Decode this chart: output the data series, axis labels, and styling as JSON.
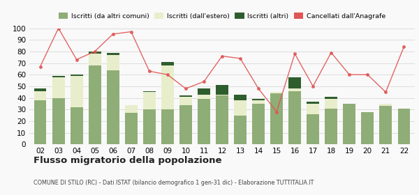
{
  "years": [
    "02",
    "03",
    "04",
    "05",
    "06",
    "07",
    "08",
    "09",
    "10",
    "11",
    "12",
    "13",
    "14",
    "15",
    "16",
    "17",
    "18",
    "19",
    "20",
    "21",
    "22"
  ],
  "iscritti_comuni": [
    38,
    40,
    32,
    68,
    64,
    27,
    30,
    30,
    34,
    39,
    42,
    25,
    35,
    44,
    46,
    26,
    31,
    35,
    28,
    33,
    31
  ],
  "iscritti_estero": [
    8,
    18,
    27,
    10,
    13,
    7,
    15,
    38,
    7,
    4,
    1,
    13,
    3,
    1,
    2,
    9,
    8,
    0,
    0,
    2,
    0
  ],
  "iscritti_altri": [
    2,
    1,
    1,
    2,
    2,
    0,
    1,
    3,
    1,
    5,
    8,
    5,
    1,
    0,
    10,
    2,
    2,
    0,
    0,
    0,
    0
  ],
  "cancellati": [
    67,
    100,
    73,
    80,
    95,
    97,
    63,
    60,
    48,
    54,
    76,
    74,
    48,
    28,
    78,
    50,
    79,
    60,
    60,
    45,
    84
  ],
  "color_comuni": "#8fad76",
  "color_estero": "#e8eecc",
  "color_altri": "#2e5e2e",
  "color_cancellati": "#e05555",
  "title": "Flusso migratorio della popolazione",
  "subtitle": "COMUNE DI STILO (RC) - Dati ISTAT (bilancio demografico 1 gen-31 dic) - Elaborazione TUTTITALIA.IT",
  "legend_labels": [
    "Iscritti (da altri comuni)",
    "Iscritti (dall'estero)",
    "Iscritti (altri)",
    "Cancellati dall'Anagrafe"
  ],
  "ylim": [
    0,
    100
  ],
  "yticks": [
    0,
    10,
    20,
    30,
    40,
    50,
    60,
    70,
    80,
    90,
    100
  ],
  "bg_color": "#f9f9f9",
  "grid_color": "#dddddd"
}
